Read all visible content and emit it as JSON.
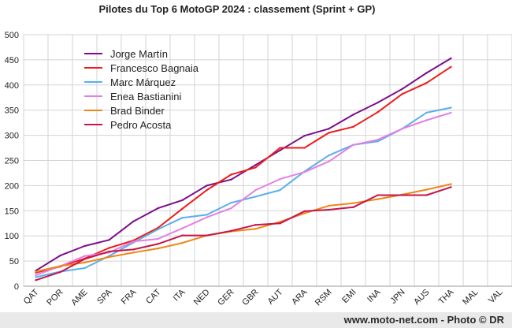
{
  "credit": "www.moto-net.com - Photo © DR",
  "chart_data": {
    "type": "line",
    "title": "Pilotes du Top 6 MotoGP 2024 : classement (Sprint + GP)",
    "xlabel": "",
    "ylabel": "",
    "categories": [
      "QAT",
      "POR",
      "AME",
      "SPA",
      "FRA",
      "CAT",
      "ITA",
      "NED",
      "GER",
      "GBR",
      "AUT",
      "ARA",
      "RSM",
      "EMI",
      "INA",
      "JPN",
      "AUS",
      "THA",
      "MAL",
      "VAL"
    ],
    "ylim": [
      0,
      500
    ],
    "yticks": [
      0,
      50,
      100,
      150,
      200,
      250,
      300,
      350,
      400,
      450,
      500
    ],
    "grid": true,
    "legend_position": "top-left",
    "series": [
      {
        "name": "Jorge Martín",
        "color": "#7b0f8a",
        "values": [
          31,
          61,
          80,
          92,
          129,
          155,
          171,
          200,
          212,
          241,
          270,
          299,
          313,
          341,
          365,
          392,
          424,
          453,
          null,
          null
        ]
      },
      {
        "name": "Francesco Bagnaia",
        "color": "#ee1c1c",
        "values": [
          27,
          39,
          55,
          76,
          91,
          116,
          154,
          191,
          222,
          236,
          275,
          275,
          305,
          317,
          346,
          382,
          404,
          436,
          null,
          null
        ]
      },
      {
        "name": "Marc Márquez",
        "color": "#5ab0ea",
        "values": [
          18,
          29,
          36,
          60,
          87,
          113,
          136,
          142,
          166,
          178,
          191,
          228,
          260,
          281,
          288,
          313,
          345,
          355,
          null,
          null
        ]
      },
      {
        "name": "Enea Bastianini",
        "color": "#e37fe6",
        "values": [
          22,
          40,
          60,
          67,
          89,
          94,
          115,
          137,
          155,
          191,
          213,
          227,
          248,
          281,
          291,
          313,
          330,
          345,
          null,
          null
        ]
      },
      {
        "name": "Brad Binder",
        "color": "#f08516",
        "values": [
          29,
          40,
          47,
          58,
          67,
          75,
          86,
          101,
          109,
          114,
          128,
          145,
          160,
          165,
          173,
          182,
          192,
          203,
          null,
          null
        ]
      },
      {
        "name": "Pedro Acosta",
        "color": "#c4164b",
        "values": [
          12,
          28,
          54,
          69,
          73,
          84,
          101,
          101,
          110,
          122,
          125,
          149,
          152,
          157,
          181,
          181,
          181,
          197,
          null,
          null
        ]
      }
    ]
  }
}
